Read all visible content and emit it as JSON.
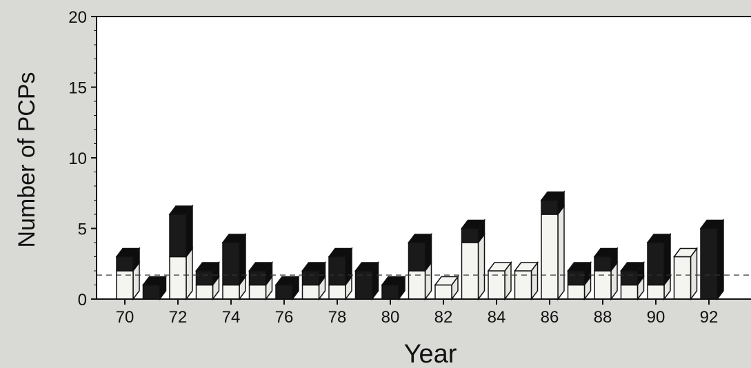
{
  "chart_data": {
    "type": "bar",
    "title": "",
    "xlabel": "Year",
    "ylabel": "Number of PCPs",
    "ylim": [
      0,
      20
    ],
    "yticks": [
      "0",
      "5",
      "10",
      "15",
      "20"
    ],
    "xtick_labels": [
      "70",
      "72",
      "74",
      "76",
      "78",
      "80",
      "82",
      "84",
      "86",
      "88",
      "90",
      "92"
    ],
    "categories": [
      "70",
      "71",
      "72",
      "73",
      "74",
      "75",
      "76",
      "77",
      "78",
      "79",
      "80",
      "81",
      "82",
      "83",
      "84",
      "85",
      "86",
      "87",
      "88",
      "89",
      "90",
      "91",
      "92"
    ],
    "stacked": true,
    "series": [
      {
        "color": "#f4f4f0",
        "values": [
          2,
          0,
          3,
          1,
          1,
          1,
          0,
          1,
          1,
          0,
          0,
          2,
          1,
          4,
          2,
          2,
          6,
          1,
          2,
          1,
          1,
          3,
          0
        ]
      },
      {
        "color": "#1a1a1a",
        "values": [
          1,
          1,
          3,
          1,
          3,
          1,
          1,
          1,
          2,
          2,
          1,
          2,
          0,
          1,
          0,
          0,
          1,
          1,
          1,
          1,
          3,
          0,
          5
        ]
      }
    ],
    "reference_line": {
      "y": 1.7,
      "style": "dashed"
    },
    "grid": false
  }
}
